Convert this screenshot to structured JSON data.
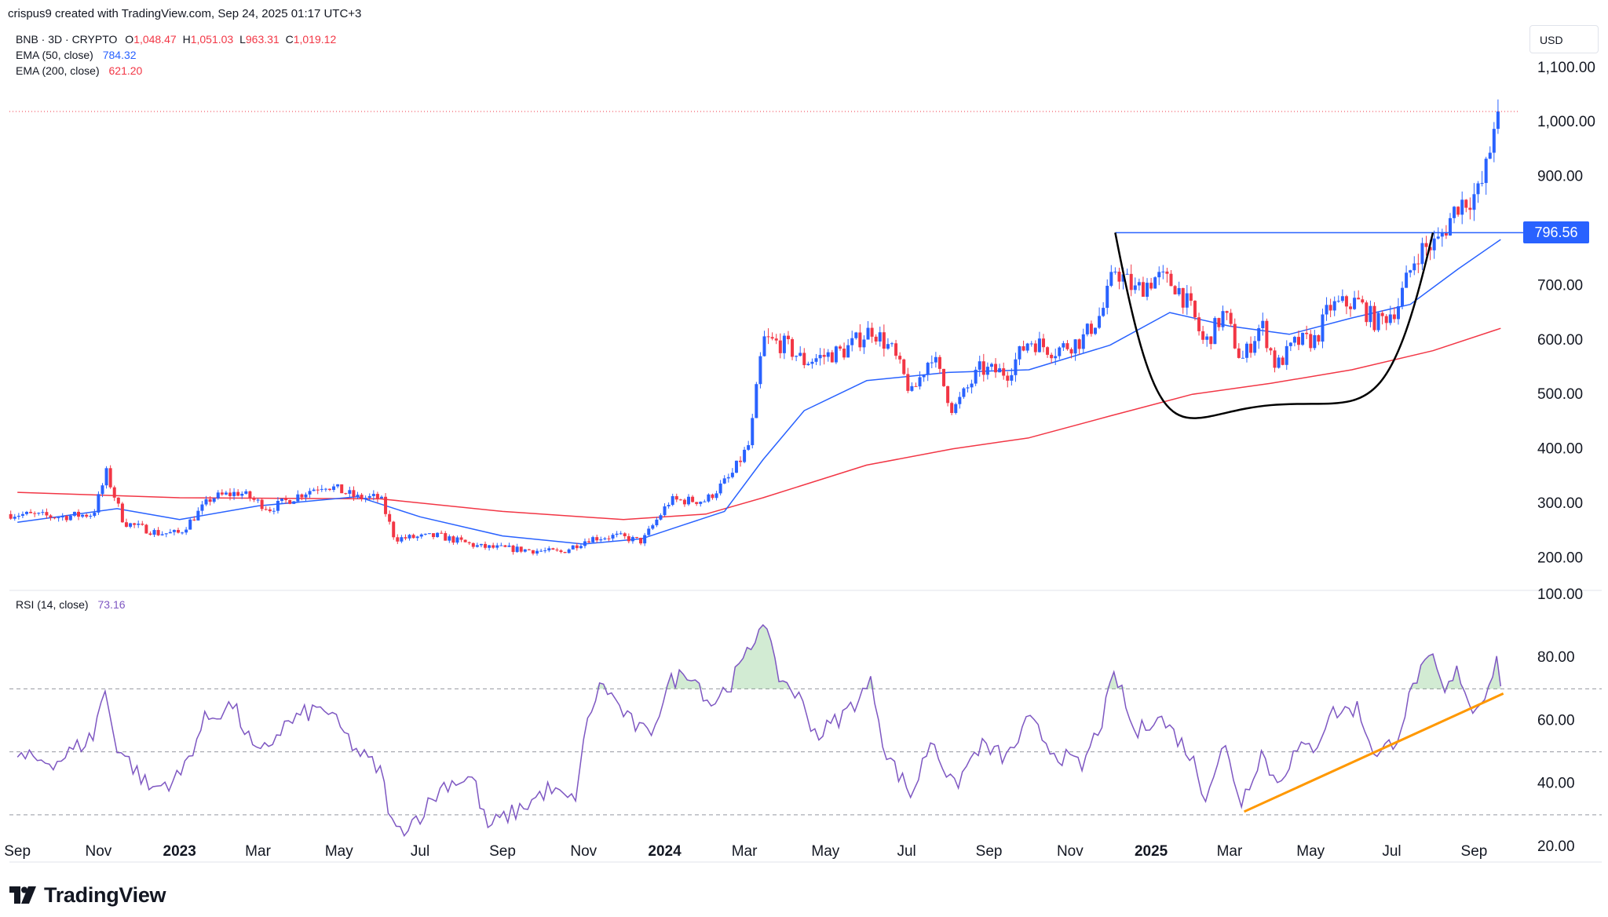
{
  "header": {
    "credit": "crispus9 created with TradingView.com, Sep 24, 2025 01:17 UTC+3"
  },
  "legend": {
    "symbol": "BNB · 3D · CRYPTO",
    "ohlc": [
      {
        "key": "O",
        "value": "1,048.47"
      },
      {
        "key": "H",
        "value": "1,051.03"
      },
      {
        "key": "L",
        "value": "963.31"
      },
      {
        "key": "C",
        "value": "1,019.12"
      }
    ],
    "ema50": {
      "label": "EMA (50, close)",
      "value": "784.32"
    },
    "ema200": {
      "label": "EMA (200, close)",
      "value": "621.20"
    },
    "rsi": {
      "label": "RSI (14, close)",
      "value": "73.16"
    }
  },
  "currency": "USD",
  "brand": {
    "name": "TradingView"
  },
  "price_badge": "796.56",
  "colors": {
    "up": "#2962ff",
    "down": "#f23645",
    "ema50": "#2962ff",
    "ema200": "#f23645",
    "rsi": "#7e57c2",
    "trend": "#ff9800",
    "cup": "#000000"
  },
  "chart_data": [
    {
      "type": "candlestick",
      "title": "BNB · 3D · CRYPTO",
      "ylim": [
        140,
        1130
      ],
      "y_ticks": [
        "200.00",
        "300.00",
        "400.00",
        "500.00",
        "600.00",
        "700.00",
        "800.00",
        "900.00",
        "1,000.00",
        "1,100.00"
      ],
      "y_tick_values": [
        200,
        300,
        400,
        500,
        600,
        700,
        800,
        900,
        1000,
        1100
      ],
      "x_ticks": [
        "Sep",
        "Nov",
        "2023",
        "Mar",
        "May",
        "Jul",
        "Sep",
        "Nov",
        "2024",
        "Mar",
        "May",
        "Jul",
        "Sep",
        "Nov",
        "2025",
        "Mar",
        "May",
        "Jul",
        "Sep"
      ],
      "x_tick_dates": [
        "2022-09-01",
        "2022-11-01",
        "2023-01-01",
        "2023-03-01",
        "2023-05-01",
        "2023-07-01",
        "2023-09-01",
        "2023-11-01",
        "2024-01-01",
        "2024-03-01",
        "2024-05-01",
        "2024-07-01",
        "2024-09-01",
        "2024-11-01",
        "2025-01-01",
        "2025-03-01",
        "2025-05-01",
        "2025-07-01",
        "2025-09-01"
      ],
      "close_path": [
        [
          "2022-09-01",
          280
        ],
        [
          "2022-10-01",
          275
        ],
        [
          "2022-10-28",
          280
        ],
        [
          "2022-11-07",
          355
        ],
        [
          "2022-11-20",
          265
        ],
        [
          "2022-12-16",
          245
        ],
        [
          "2023-01-01",
          245
        ],
        [
          "2023-01-25",
          310
        ],
        [
          "2023-02-15",
          320
        ],
        [
          "2023-03-10",
          290
        ],
        [
          "2023-04-05",
          320
        ],
        [
          "2023-04-20",
          335
        ],
        [
          "2023-05-15",
          310
        ],
        [
          "2023-06-01",
          310
        ],
        [
          "2023-06-12",
          235
        ],
        [
          "2023-07-15",
          240
        ],
        [
          "2023-08-15",
          220
        ],
        [
          "2023-09-15",
          215
        ],
        [
          "2023-10-15",
          210
        ],
        [
          "2023-11-05",
          235
        ],
        [
          "2023-11-25",
          240
        ],
        [
          "2023-12-15",
          230
        ],
        [
          "2024-01-05",
          305
        ],
        [
          "2024-02-01",
          305
        ],
        [
          "2024-02-20",
          350
        ],
        [
          "2024-03-05",
          410
        ],
        [
          "2024-03-15",
          600
        ],
        [
          "2024-04-01",
          590
        ],
        [
          "2024-04-15",
          560
        ],
        [
          "2024-05-15",
          580
        ],
        [
          "2024-06-05",
          620
        ],
        [
          "2024-06-20",
          580
        ],
        [
          "2024-07-05",
          500
        ],
        [
          "2024-07-20",
          575
        ],
        [
          "2024-08-05",
          470
        ],
        [
          "2024-08-25",
          545
        ],
        [
          "2024-09-15",
          540
        ],
        [
          "2024-10-01",
          600
        ],
        [
          "2024-10-20",
          580
        ],
        [
          "2024-11-10",
          600
        ],
        [
          "2024-11-25",
          650
        ],
        [
          "2024-12-05",
          730
        ],
        [
          "2024-12-20",
          690
        ],
        [
          "2025-01-05",
          715
        ],
        [
          "2025-01-20",
          700
        ],
        [
          "2025-02-01",
          650
        ],
        [
          "2025-02-10",
          590
        ],
        [
          "2025-02-25",
          650
        ],
        [
          "2025-03-10",
          560
        ],
        [
          "2025-03-25",
          630
        ],
        [
          "2025-04-05",
          550
        ],
        [
          "2025-04-20",
          595
        ],
        [
          "2025-05-05",
          600
        ],
        [
          "2025-05-15",
          660
        ],
        [
          "2025-06-05",
          670
        ],
        [
          "2025-06-20",
          630
        ],
        [
          "2025-07-05",
          660
        ],
        [
          "2025-07-20",
          760
        ],
        [
          "2025-08-05",
          780
        ],
        [
          "2025-08-20",
          850
        ],
        [
          "2025-09-05",
          870
        ],
        [
          "2025-09-12",
          930
        ],
        [
          "2025-09-18",
          1040
        ],
        [
          "2025-09-21",
          1019
        ]
      ],
      "ema50_path": [
        [
          "2022-09-01",
          265
        ],
        [
          "2022-11-15",
          290
        ],
        [
          "2023-01-01",
          270
        ],
        [
          "2023-03-01",
          295
        ],
        [
          "2023-05-15",
          312
        ],
        [
          "2023-07-01",
          275
        ],
        [
          "2023-09-01",
          240
        ],
        [
          "2023-11-01",
          225
        ],
        [
          "2023-12-15",
          235
        ],
        [
          "2024-01-15",
          260
        ],
        [
          "2024-02-15",
          285
        ],
        [
          "2024-03-15",
          380
        ],
        [
          "2024-04-15",
          470
        ],
        [
          "2024-06-01",
          525
        ],
        [
          "2024-08-01",
          540
        ],
        [
          "2024-10-01",
          545
        ],
        [
          "2024-12-01",
          590
        ],
        [
          "2025-01-15",
          650
        ],
        [
          "2025-03-01",
          625
        ],
        [
          "2025-04-15",
          610
        ],
        [
          "2025-06-01",
          640
        ],
        [
          "2025-07-15",
          665
        ],
        [
          "2025-08-20",
          730
        ],
        [
          "2025-09-21",
          784
        ]
      ],
      "ema200_path": [
        [
          "2022-09-01",
          320
        ],
        [
          "2023-01-01",
          310
        ],
        [
          "2023-06-01",
          308
        ],
        [
          "2023-09-01",
          285
        ],
        [
          "2023-12-01",
          270
        ],
        [
          "2024-02-01",
          280
        ],
        [
          "2024-03-15",
          310
        ],
        [
          "2024-06-01",
          370
        ],
        [
          "2024-08-05",
          400
        ],
        [
          "2024-10-01",
          420
        ],
        [
          "2024-12-01",
          460
        ],
        [
          "2025-02-01",
          500
        ],
        [
          "2025-04-01",
          520
        ],
        [
          "2025-06-01",
          545
        ],
        [
          "2025-08-01",
          580
        ],
        [
          "2025-09-21",
          621
        ]
      ],
      "price_line": 796.56,
      "current_price": 1019.12,
      "annotations": [
        {
          "type": "horizontal-line",
          "value": 796.56
        },
        {
          "type": "cup",
          "from": [
            "2024-12-05",
            796.56
          ],
          "bottom": [
            "2025-04-01",
            480
          ],
          "to": [
            "2025-08-01",
            796.56
          ]
        }
      ]
    },
    {
      "type": "line",
      "title": "RSI (14, close)",
      "ylim": [
        15,
        100
      ],
      "y_ticks": [
        "20.00",
        "40.00",
        "60.00",
        "80.00",
        "100.00"
      ],
      "y_tick_values": [
        20,
        40,
        60,
        80,
        100
      ],
      "bands": [
        30,
        50,
        70
      ],
      "series": [
        {
          "name": "RSI (14, close)",
          "values": [
            [
              "2022-09-01",
              48
            ],
            [
              "2022-10-01",
              47
            ],
            [
              "2022-10-28",
              55
            ],
            [
              "2022-11-05",
              70
            ],
            [
              "2022-11-15",
              52
            ],
            [
              "2022-12-10",
              38
            ],
            [
              "2023-01-01",
              42
            ],
            [
              "2023-01-20",
              60
            ],
            [
              "2023-02-10",
              65
            ],
            [
              "2023-03-01",
              48
            ],
            [
              "2023-03-20",
              58
            ],
            [
              "2023-04-05",
              62
            ],
            [
              "2023-04-20",
              64
            ],
            [
              "2023-05-15",
              50
            ],
            [
              "2023-06-01",
              44
            ],
            [
              "2023-06-12",
              24
            ],
            [
              "2023-07-01",
              30
            ],
            [
              "2023-07-20",
              40
            ],
            [
              "2023-08-10",
              42
            ],
            [
              "2023-08-20",
              26
            ],
            [
              "2023-09-15",
              32
            ],
            [
              "2023-10-05",
              38
            ],
            [
              "2023-10-25",
              34
            ],
            [
              "2023-11-05",
              62
            ],
            [
              "2023-11-15",
              72
            ],
            [
              "2023-12-05",
              60
            ],
            [
              "2023-12-20",
              55
            ],
            [
              "2024-01-05",
              72
            ],
            [
              "2024-01-20",
              76
            ],
            [
              "2024-02-05",
              65
            ],
            [
              "2024-02-20",
              72
            ],
            [
              "2024-03-05",
              82
            ],
            [
              "2024-03-15",
              93
            ],
            [
              "2024-03-25",
              75
            ],
            [
              "2024-04-10",
              68
            ],
            [
              "2024-04-25",
              55
            ],
            [
              "2024-05-15",
              62
            ],
            [
              "2024-06-05",
              72
            ],
            [
              "2024-06-15",
              50
            ],
            [
              "2024-07-05",
              36
            ],
            [
              "2024-07-20",
              55
            ],
            [
              "2024-08-05",
              38
            ],
            [
              "2024-08-25",
              52
            ],
            [
              "2024-09-15",
              48
            ],
            [
              "2024-10-01",
              60
            ],
            [
              "2024-10-20",
              50
            ],
            [
              "2024-11-10",
              45
            ],
            [
              "2024-11-25",
              60
            ],
            [
              "2024-12-05",
              75
            ],
            [
              "2024-12-20",
              55
            ],
            [
              "2025-01-05",
              62
            ],
            [
              "2025-01-20",
              55
            ],
            [
              "2025-02-01",
              48
            ],
            [
              "2025-02-10",
              36
            ],
            [
              "2025-02-25",
              52
            ],
            [
              "2025-03-10",
              34
            ],
            [
              "2025-03-25",
              50
            ],
            [
              "2025-04-05",
              40
            ],
            [
              "2025-04-20",
              50
            ],
            [
              "2025-05-05",
              52
            ],
            [
              "2025-05-15",
              62
            ],
            [
              "2025-06-05",
              64
            ],
            [
              "2025-06-20",
              48
            ],
            [
              "2025-07-05",
              55
            ],
            [
              "2025-07-20",
              74
            ],
            [
              "2025-08-01",
              79
            ],
            [
              "2025-08-10",
              68
            ],
            [
              "2025-08-20",
              76
            ],
            [
              "2025-09-01",
              62
            ],
            [
              "2025-09-10",
              70
            ],
            [
              "2025-09-18",
              79
            ],
            [
              "2025-09-21",
              73
            ]
          ]
        }
      ],
      "annotations": [
        {
          "type": "trend-line",
          "from": [
            "2025-03-12",
            31
          ],
          "to": [
            "2025-09-23",
            68.5
          ]
        }
      ]
    }
  ]
}
